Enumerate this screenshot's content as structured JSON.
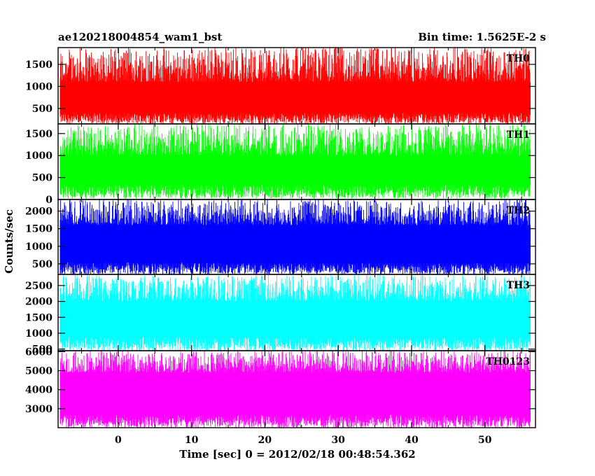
{
  "chart_data": {
    "type": "line",
    "title_left": "ae120218004854_wam1_bst",
    "title_right": "Bin time: 1.5625E-2 s",
    "xlabel": "Time [sec] 0 = 2012/02/18 00:48:54.362",
    "ylabel": "Counts/sec",
    "xlim": [
      -8.2,
      56.9
    ],
    "x_ticks": [
      0,
      10,
      20,
      30,
      40,
      50
    ],
    "x_range_data": [
      -7.9,
      56.1
    ],
    "grid": false,
    "panels": [
      {
        "name": "TH0",
        "color": "#ff0000",
        "ylim": [
          150,
          1880
        ],
        "y_ticks": [
          500,
          1000,
          1500
        ],
        "low_range": [
          150,
          400
        ],
        "high_range": [
          1100,
          1900
        ],
        "spike_bursts": [
          [
            3.8,
            1800
          ],
          [
            22.0,
            1750
          ],
          [
            29.8,
            1950
          ],
          [
            30.3,
            1950
          ]
        ]
      },
      {
        "name": "TH1",
        "color": "#00ff00",
        "ylim": [
          0,
          1720
        ],
        "y_ticks": [
          0,
          500,
          1000,
          1500
        ],
        "low_range": [
          20,
          350
        ],
        "high_range": [
          1000,
          1720
        ]
      },
      {
        "name": "TH2",
        "color": "#0000ff",
        "ylim": [
          200,
          2330
        ],
        "y_ticks": [
          500,
          1000,
          1500,
          2000
        ],
        "low_range": [
          200,
          550
        ],
        "high_range": [
          1600,
          2330
        ]
      },
      {
        "name": "TH3",
        "color": "#00ffff",
        "ylim": [
          450,
          2850
        ],
        "y_ticks": [
          500,
          1000,
          1500,
          2000,
          2500
        ],
        "low_range": [
          450,
          900
        ],
        "high_range": [
          2000,
          2850
        ]
      },
      {
        "name": "TH0123",
        "color": "#ff00ff",
        "ylim": [
          2000,
          6050
        ],
        "y_ticks": [
          3000,
          4000,
          5000,
          6000
        ],
        "low_range": [
          2000,
          2700
        ],
        "high_range": [
          4900,
          6050
        ]
      }
    ]
  }
}
